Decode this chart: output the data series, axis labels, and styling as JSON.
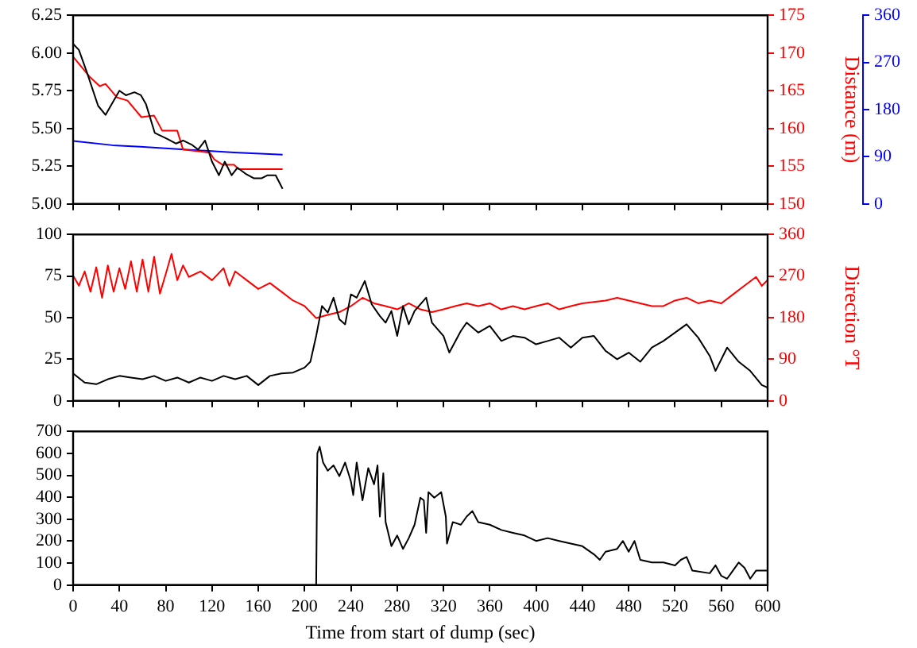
{
  "chart_data": [
    {
      "type": "line",
      "xlim": [
        0,
        600
      ],
      "xticks": [
        0,
        40,
        80,
        120,
        160,
        200,
        240,
        280,
        320,
        360,
        400,
        440,
        480,
        520,
        560,
        600
      ],
      "ylim": [
        5,
        6.25
      ],
      "yticks": [
        {
          "value": 5,
          "label": "5.00"
        },
        {
          "value": 5.25,
          "label": "5.25"
        },
        {
          "value": 5.5,
          "label": "5.50"
        },
        {
          "value": 5.75,
          "label": "5.75"
        },
        {
          "value": 6,
          "label": "6.00"
        },
        {
          "value": 6.25,
          "label": "6.25"
        }
      ],
      "y2lim": [
        150,
        175
      ],
      "y2ticks": [
        150,
        155,
        160,
        165,
        170,
        175
      ],
      "y3lim": [
        0,
        360
      ],
      "y3ticks": [
        0,
        90,
        180,
        270,
        360
      ],
      "y2label": "Distance (m)",
      "tick_labels": "y",
      "grid": false,
      "legend": false,
      "marker": "none",
      "line_style": "solid",
      "series": [
        {
          "color": "#000000",
          "x": [
            0,
            5,
            12,
            21.6,
            28,
            40,
            45.6,
            53,
            58.6,
            63,
            70.6,
            81.6,
            89,
            95,
            103,
            108,
            114,
            120,
            126,
            131,
            137,
            142,
            149,
            156,
            163,
            168,
            175,
            181
          ],
          "values": [
            6.06,
            6.02,
            5.87,
            5.65,
            5.59,
            5.75,
            5.72,
            5.74,
            5.72,
            5.66,
            5.47,
            5.43,
            5.4,
            5.42,
            5.39,
            5.36,
            5.42,
            5.28,
            5.19,
            5.28,
            5.19,
            5.24,
            5.2,
            5.17,
            5.17,
            5.19,
            5.19,
            5.1
          ]
        },
        {
          "color": "#ff0000",
          "axis": "y2",
          "x": [
            0,
            14,
            23,
            28,
            38,
            47,
            59,
            70,
            77,
            90,
            95,
            118,
            122,
            129,
            139,
            143,
            181
          ],
          "values": [
            169.5,
            166.9,
            165.6,
            165.9,
            164.1,
            163.7,
            161.5,
            161.7,
            159.7,
            159.7,
            157.2,
            156.8,
            155.9,
            155.2,
            155.2,
            154.6,
            154.6
          ]
        },
        {
          "color": "#0000ff",
          "axis": "y3",
          "x": [
            0,
            34,
            58,
            96,
            139,
            181
          ],
          "values": [
            120,
            112,
            109,
            104,
            98,
            94
          ]
        }
      ]
    },
    {
      "type": "line",
      "xlim": [
        0,
        600
      ],
      "xticks": [
        0,
        40,
        80,
        120,
        160,
        200,
        240,
        280,
        320,
        360,
        400,
        440,
        480,
        520,
        560,
        600
      ],
      "ylim": [
        0,
        100
      ],
      "yticks": [
        0,
        25,
        50,
        75,
        100
      ],
      "y2lim": [
        0,
        360
      ],
      "y2ticks": [
        0,
        90,
        180,
        270,
        360
      ],
      "y2label": "Direction °T",
      "tick_labels": "y",
      "grid": false,
      "legend": false,
      "marker": "none",
      "line_style": "solid",
      "series": [
        {
          "color": "#000000",
          "x": [
            0,
            10,
            20,
            30,
            40,
            50,
            60,
            70,
            80,
            90,
            100,
            110,
            120,
            130,
            140,
            150,
            160,
            170,
            180,
            190,
            200,
            205,
            210,
            215,
            220,
            225,
            230,
            235,
            240,
            245,
            252,
            258,
            265,
            270,
            275,
            280,
            285,
            290,
            295,
            305,
            310,
            320,
            325,
            335,
            340,
            350,
            360,
            370,
            380,
            390,
            400,
            410,
            420,
            430,
            440,
            450,
            460,
            470,
            480,
            490,
            500,
            510,
            520,
            530,
            540,
            550,
            555,
            565,
            575,
            585,
            595,
            600
          ],
          "values": [
            16.5,
            11,
            10,
            13,
            15,
            14,
            13,
            15,
            12,
            14,
            11,
            14,
            12,
            15,
            13,
            15,
            9.5,
            15,
            16.5,
            17,
            20,
            23.5,
            39,
            57,
            53,
            62,
            49,
            46,
            64,
            62,
            72,
            58,
            51,
            47,
            54,
            39,
            57,
            46,
            54,
            62,
            47,
            39,
            29,
            42,
            47,
            41,
            45,
            36,
            39,
            38,
            34,
            36,
            38,
            32,
            38,
            39,
            30,
            25,
            29,
            23.5,
            32,
            36,
            41,
            46,
            38,
            27,
            18,
            32,
            23.5,
            18,
            9.5,
            8
          ]
        },
        {
          "color": "#ff0000",
          "axis": "y2",
          "x": [
            0,
            5,
            10,
            15,
            20,
            25,
            30,
            35,
            40,
            45,
            50,
            55,
            60,
            65,
            70,
            75,
            80,
            85,
            90,
            95,
            100,
            110,
            120,
            130,
            135,
            140,
            150,
            160,
            170,
            180,
            190,
            200,
            205,
            210,
            220,
            230,
            240,
            250,
            260,
            270,
            280,
            290,
            300,
            310,
            320,
            330,
            340,
            350,
            360,
            370,
            380,
            390,
            400,
            410,
            420,
            430,
            440,
            460,
            470,
            480,
            490,
            500,
            510,
            520,
            530,
            540,
            550,
            560,
            570,
            580,
            590,
            595,
            600
          ],
          "values": [
            271,
            249,
            280,
            236,
            289,
            223,
            293,
            236,
            287,
            242,
            302,
            236,
            306,
            236,
            312,
            232,
            274,
            318,
            261,
            293,
            268,
            280,
            261,
            287,
            249,
            280,
            261,
            242,
            255,
            236,
            217,
            205,
            192,
            179,
            186,
            192,
            205,
            223,
            211,
            205,
            198,
            211,
            198,
            192,
            198,
            205,
            211,
            205,
            211,
            198,
            205,
            198,
            205,
            211,
            198,
            205,
            211,
            217,
            223,
            217,
            211,
            205,
            205,
            217,
            223,
            211,
            217,
            211,
            230,
            249,
            268,
            249,
            261
          ]
        }
      ]
    },
    {
      "type": "line",
      "xlim": [
        0,
        600
      ],
      "xticks": [
        0,
        40,
        80,
        120,
        160,
        200,
        240,
        280,
        320,
        360,
        400,
        440,
        480,
        520,
        560,
        600
      ],
      "ylim": [
        0,
        700
      ],
      "yticks": [
        0,
        100,
        200,
        300,
        400,
        500,
        600,
        700
      ],
      "xlabel": "Time from start of dump (sec)",
      "grid": false,
      "legend": false,
      "marker": "none",
      "line_style": "solid",
      "series": [
        {
          "color": "#000000",
          "x": [
            0,
            210,
            211,
            213,
            216,
            220,
            225,
            230,
            235,
            240,
            242,
            245,
            250,
            255,
            260,
            263,
            265,
            268,
            270,
            275,
            280,
            285,
            290,
            295,
            300,
            303,
            305,
            307,
            312,
            318,
            322,
            323,
            328,
            335,
            340,
            345,
            350,
            360,
            370,
            380,
            390,
            400,
            410,
            420,
            430,
            440,
            450,
            455,
            460,
            470,
            475,
            480,
            485,
            490,
            500,
            510,
            520,
            525,
            530,
            535,
            550,
            555,
            560,
            565,
            570,
            575,
            580,
            585,
            590,
            600
          ],
          "values": [
            0,
            0,
            600,
            630,
            558,
            521,
            545,
            496,
            558,
            472,
            410,
            558,
            386,
            533,
            459,
            545,
            312,
            509,
            287,
            177,
            226,
            165,
            214,
            275,
            398,
            386,
            238,
            423,
            398,
            423,
            312,
            189,
            287,
            275,
            312,
            337,
            287,
            275,
            251,
            238,
            226,
            201,
            214,
            201,
            189,
            177,
            140,
            115,
            152,
            165,
            201,
            152,
            201,
            115,
            103,
            103,
            90,
            115,
            128,
            66,
            54,
            90,
            42,
            29,
            66,
            103,
            79,
            29,
            66,
            66
          ]
        }
      ]
    }
  ]
}
